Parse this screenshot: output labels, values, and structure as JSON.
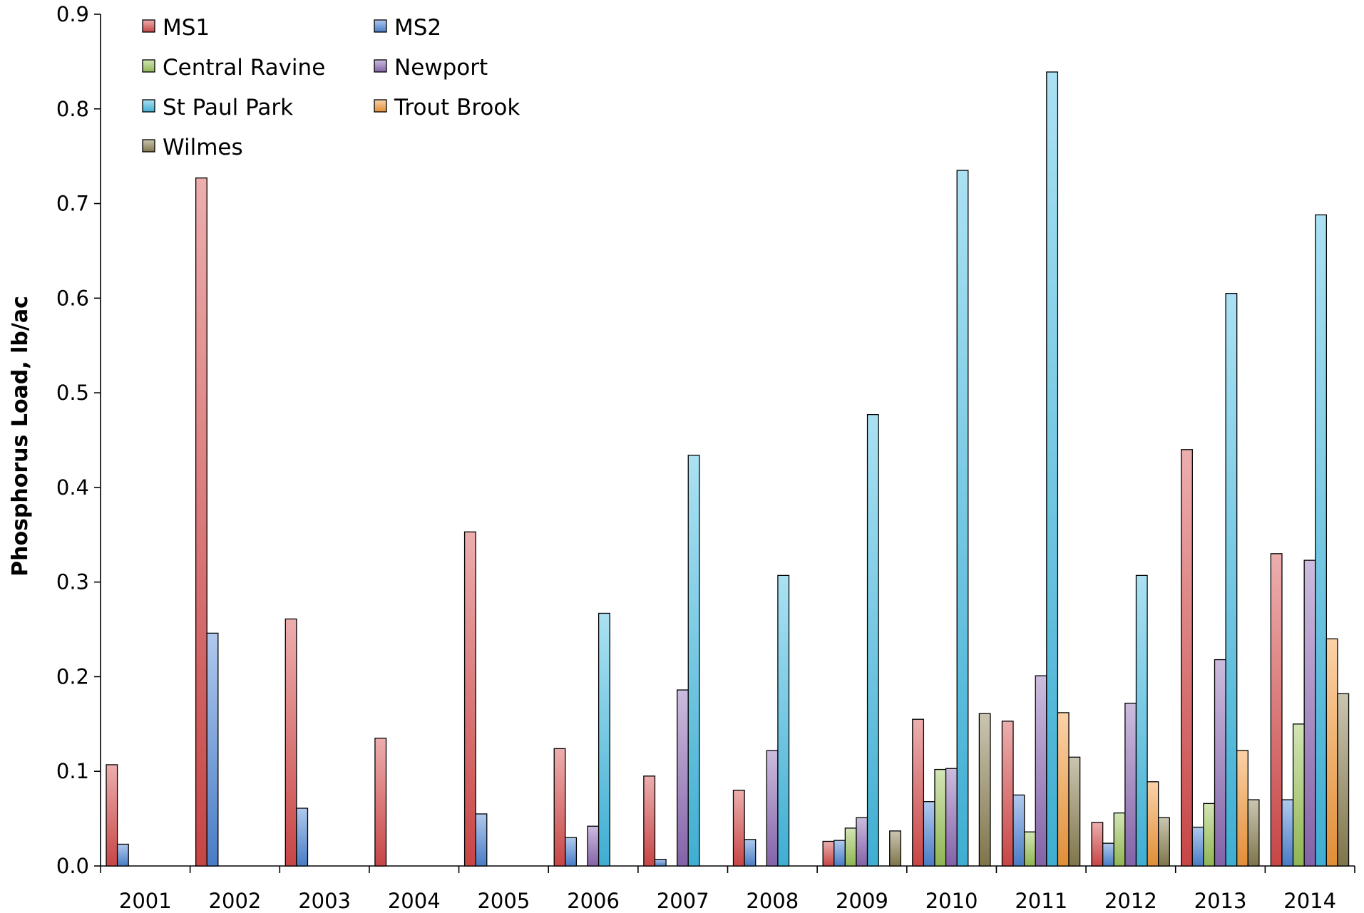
{
  "chart_data": {
    "type": "bar",
    "title": "",
    "xlabel": "",
    "ylabel": "Phosphorus Load, lb/ac",
    "ylim": [
      0,
      0.9
    ],
    "ytick_labels": [
      "0.0",
      "0.1",
      "0.2",
      "0.3",
      "0.4",
      "0.5",
      "0.6",
      "0.7",
      "0.8",
      "0.9"
    ],
    "grid": false,
    "legend_position": "top-left",
    "categories": [
      "2001",
      "2002",
      "2003",
      "2004",
      "2005",
      "2006",
      "2007",
      "2008",
      "2009",
      "2010",
      "2011",
      "2012",
      "2013",
      "2014"
    ],
    "series": [
      {
        "name": "MS1",
        "color": "#d84b4b",
        "values": [
          0.107,
          0.727,
          0.261,
          0.135,
          0.353,
          0.124,
          0.095,
          0.08,
          0.026,
          0.155,
          0.153,
          0.046,
          0.44,
          0.33
        ]
      },
      {
        "name": "MS2",
        "color": "#4f87d6",
        "values": [
          0.023,
          0.246,
          0.061,
          null,
          0.055,
          0.03,
          0.007,
          0.028,
          0.027,
          0.068,
          0.075,
          0.024,
          0.041,
          0.07
        ]
      },
      {
        "name": "Central Ravine",
        "color": "#9dc55a",
        "values": [
          null,
          null,
          null,
          null,
          null,
          null,
          null,
          null,
          0.04,
          0.102,
          0.036,
          0.056,
          0.066,
          0.15
        ]
      },
      {
        "name": "Newport",
        "color": "#8e6bb5",
        "values": [
          null,
          null,
          null,
          null,
          null,
          0.042,
          0.186,
          0.122,
          0.051,
          0.103,
          0.201,
          0.172,
          0.218,
          0.323
        ]
      },
      {
        "name": "St Paul Park",
        "color": "#44bde4",
        "values": [
          null,
          null,
          null,
          null,
          null,
          0.267,
          0.434,
          0.307,
          0.477,
          0.735,
          0.839,
          0.307,
          0.605,
          0.688
        ]
      },
      {
        "name": "Trout Brook",
        "color": "#f59a3c",
        "values": [
          null,
          null,
          null,
          null,
          null,
          null,
          null,
          null,
          null,
          null,
          0.162,
          0.089,
          0.122,
          0.24
        ]
      },
      {
        "name": "Wilmes",
        "color": "#8a7f52",
        "values": [
          null,
          null,
          null,
          null,
          null,
          null,
          null,
          null,
          0.037,
          0.161,
          0.115,
          0.051,
          0.07,
          0.182
        ]
      }
    ]
  }
}
